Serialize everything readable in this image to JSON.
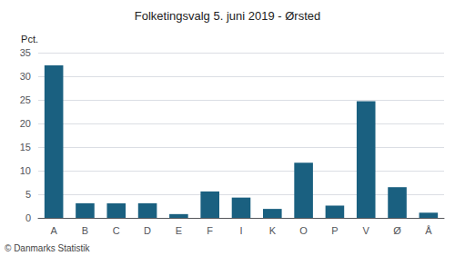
{
  "chart_data": {
    "type": "bar",
    "title": "Folketingsvalg 5. juni 2019 - Ørsted",
    "ylabel": "Pct.",
    "footer": "© Danmarks Statistik",
    "categories": [
      "A",
      "B",
      "C",
      "D",
      "E",
      "F",
      "I",
      "K",
      "O",
      "P",
      "V",
      "Ø",
      "Å"
    ],
    "values": [
      32.3,
      3.1,
      3.1,
      3.1,
      0.8,
      5.6,
      4.3,
      1.9,
      11.7,
      2.6,
      24.7,
      6.5,
      1.1
    ],
    "color": "#1a6080",
    "ylim": [
      0,
      35
    ],
    "yticks": [
      0,
      5,
      10,
      15,
      20,
      25,
      30,
      35
    ],
    "grid": true
  }
}
